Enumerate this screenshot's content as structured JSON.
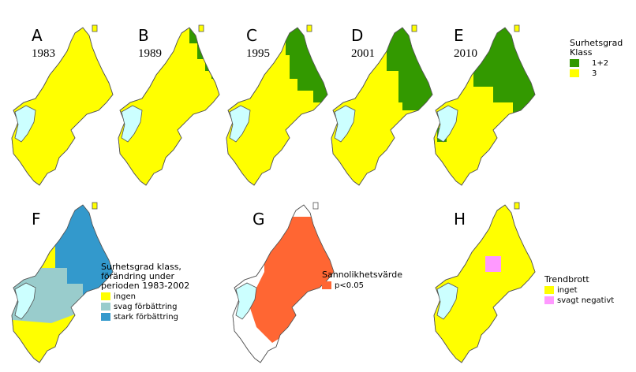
{
  "panels": [
    {
      "letter": "A",
      "year": "1983"
    },
    {
      "letter": "B",
      "year": "1989"
    },
    {
      "letter": "C",
      "year": "1995"
    },
    {
      "letter": "D",
      "year": "2001"
    },
    {
      "letter": "E",
      "year": "2010"
    },
    {
      "letter": "F"
    },
    {
      "letter": "G"
    },
    {
      "letter": "H"
    }
  ],
  "legends": [
    {
      "title": [
        "Surhetsgrad",
        "Klass"
      ],
      "items": [
        {
          "label": "1+2",
          "color": "#339900"
        },
        {
          "label": "3",
          "color": "#ffff00"
        }
      ]
    },
    {
      "title": [
        "Surhetsgrad klass,",
        "förändring under",
        "perioden 1983-2002"
      ],
      "items": [
        {
          "label": "ingen",
          "color": "#ffff00"
        },
        {
          "label": "svag förbättring",
          "color": "#99cccc"
        },
        {
          "label": "stark förbättring",
          "color": "#3399cc"
        }
      ]
    },
    {
      "title": [
        "Sannolikhetsvärde"
      ],
      "items": [
        {
          "label": "p<0.05",
          "color": "#ff6633"
        }
      ]
    },
    {
      "title": [
        "Trendbrott"
      ],
      "items": [
        {
          "label": "inget",
          "color": "#ffff00"
        },
        {
          "label": "svagt negativt",
          "color": "#ff99ff"
        }
      ]
    }
  ]
}
